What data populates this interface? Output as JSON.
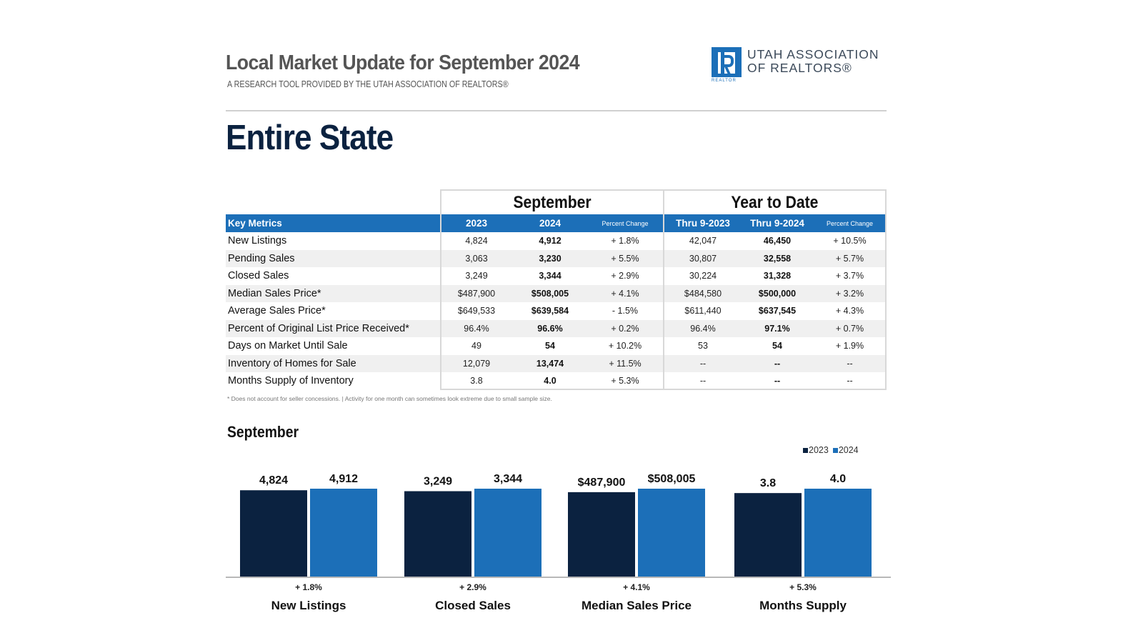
{
  "header": {
    "title": "Local Market Update for September 2024",
    "subtitle": "A RESEARCH TOOL PROVIDED BY THE UTAH ASSOCIATION OF REALTORS®",
    "logo": {
      "line1": "UTAH ASSOCIATION",
      "line2": "OF REALTORS®",
      "mark_text": "REALTOR",
      "color": "#1c6fb8"
    }
  },
  "area_title": "Entire State",
  "table": {
    "group_headers": [
      "September",
      "Year to Date"
    ],
    "columns": [
      "Key Metrics",
      "2023",
      "2024",
      "Percent Change",
      "Thru 9-2023",
      "Thru 9-2024",
      "Percent Change"
    ],
    "rows": [
      {
        "metric": "New Listings",
        "values": [
          "4,824",
          "4,912",
          "+ 1.8%",
          "42,047",
          "46,450",
          "+ 10.5%"
        ]
      },
      {
        "metric": "Pending Sales",
        "values": [
          "3,063",
          "3,230",
          "+ 5.5%",
          "30,807",
          "32,558",
          "+ 5.7%"
        ]
      },
      {
        "metric": "Closed Sales",
        "values": [
          "3,249",
          "3,344",
          "+ 2.9%",
          "30,224",
          "31,328",
          "+ 3.7%"
        ]
      },
      {
        "metric": "Median Sales Price*",
        "values": [
          "$487,900",
          "$508,005",
          "+ 4.1%",
          "$484,580",
          "$500,000",
          "+ 3.2%"
        ]
      },
      {
        "metric": "Average Sales Price*",
        "values": [
          "$649,533",
          "$639,584",
          "- 1.5%",
          "$611,440",
          "$637,545",
          "+ 4.3%"
        ]
      },
      {
        "metric": "Percent of Original List Price Received*",
        "values": [
          "96.4%",
          "96.6%",
          "+ 0.2%",
          "96.4%",
          "97.1%",
          "+ 0.7%"
        ]
      },
      {
        "metric": "Days on Market Until Sale",
        "values": [
          "49",
          "54",
          "+ 10.2%",
          "53",
          "54",
          "+ 1.9%"
        ]
      },
      {
        "metric": "Inventory of Homes for Sale",
        "values": [
          "12,079",
          "13,474",
          "+ 11.5%",
          "--",
          "--",
          "--"
        ]
      },
      {
        "metric": "Months Supply of Inventory",
        "values": [
          "3.8",
          "4.0",
          "+ 5.3%",
          "--",
          "--",
          "--"
        ]
      }
    ],
    "header_color": "#1c6fb8"
  },
  "footnote": "* Does not account for seller concessions.  |  Activity for one month can sometimes look extreme due to small sample size.",
  "chart_data": {
    "type": "bar",
    "title": "September",
    "categories": [
      "New Listings",
      "Closed Sales",
      "Median Sales Price",
      "Months Supply"
    ],
    "series": [
      {
        "name": "2023",
        "color": "#0b2240",
        "values": [
          4824,
          3249,
          487900,
          3.8
        ],
        "labels": [
          "4,824",
          "3,249",
          "$487,900",
          "3.8"
        ]
      },
      {
        "name": "2024",
        "color": "#1c6fb8",
        "values": [
          4912,
          3344,
          508005,
          4.0
        ],
        "labels": [
          "4,912",
          "3,344",
          "$508,005",
          "4.0"
        ]
      }
    ],
    "percent_changes": [
      "+ 1.8%",
      "+ 2.9%",
      "+ 4.1%",
      "+ 5.3%"
    ],
    "legend_position": "top-right",
    "scale": "independent per category",
    "xlabel": "",
    "ylabel": ""
  }
}
